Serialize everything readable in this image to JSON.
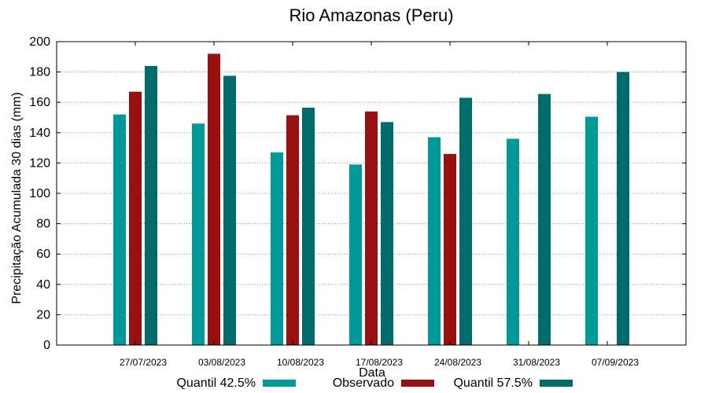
{
  "chart_data": {
    "type": "bar",
    "title": "Rio Amazonas (Peru)",
    "xlabel": "Data",
    "ylabel": "Precipitação Acumulada 30 dias (mm)",
    "ylim": [
      0,
      200
    ],
    "yticks": [
      0,
      20,
      40,
      60,
      80,
      100,
      120,
      140,
      160,
      180,
      200
    ],
    "grid": true,
    "legend_position": "bottom",
    "categories": [
      "27/07/2023",
      "03/08/2023",
      "10/08/2023",
      "17/08/2023",
      "24/08/2023",
      "31/08/2023",
      "07/09/2023"
    ],
    "series": [
      {
        "name": "Quantil 42.5%",
        "color": "#009999",
        "values": [
          152,
          146,
          127,
          119,
          137,
          136,
          150.5
        ]
      },
      {
        "name": "Observado",
        "color": "#991010",
        "values": [
          167,
          192,
          151.5,
          154,
          126,
          null,
          null
        ]
      },
      {
        "name": "Quantil 57.5%",
        "color": "#006b6b",
        "values": [
          184,
          177.5,
          156.5,
          147,
          163,
          165.5,
          180
        ]
      }
    ]
  }
}
